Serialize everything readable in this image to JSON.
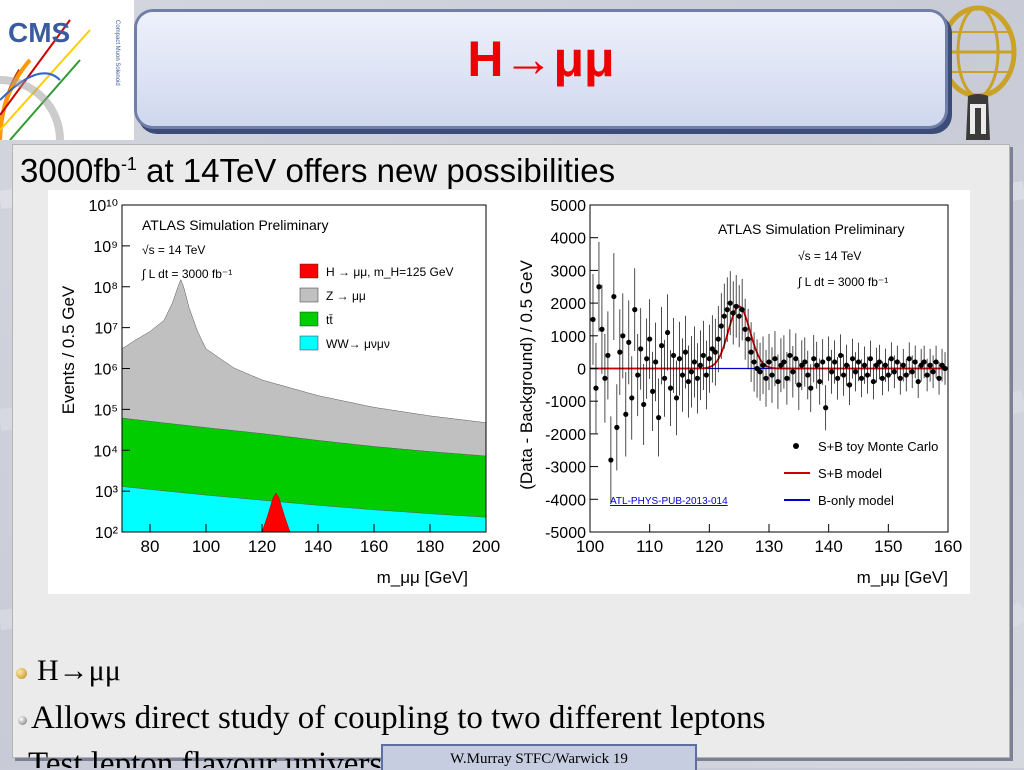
{
  "slide": {
    "title": "H→μμ",
    "headline_prefix": "3000fb",
    "headline_sup": "-1",
    "headline_suffix": " at 14TeV offers new possibilities",
    "bullets": [
      "H→μμ",
      "Allows direct study of coupling to two different leptons",
      "Test lepton flavour universality carefully"
    ],
    "footer": "W.Murray STFC/Warwick 19",
    "logo_left_text": "CMS",
    "logo_left_subtext": "Compact Muon Solenoid"
  },
  "chart_data": [
    {
      "type": "area",
      "header": "ATLAS Simulation Preliminary",
      "energy_label": "√s = 14 TeV",
      "lumi_label": "∫ L dt = 3000 fb⁻¹",
      "xlabel": "m_μμ [GeV]",
      "ylabel": "Events / 0.5 GeV",
      "xlim": [
        70,
        200
      ],
      "ylim": [
        100,
        10000000000
      ],
      "yscale": "log",
      "xticks": [
        "80",
        "100",
        "120",
        "140",
        "160",
        "180",
        "200"
      ],
      "yticks": [
        "10²",
        "10³",
        "10⁴",
        "10⁵",
        "10⁶",
        "10⁷",
        "10⁸",
        "10⁹",
        "10¹⁰"
      ],
      "legend": [
        {
          "label": "H → μμ, m_H=125 GeV",
          "color": "#ff0000"
        },
        {
          "label": "Z → μμ",
          "color": "#c0c0c0"
        },
        {
          "label": "tt̄",
          "color": "#00cc00"
        },
        {
          "label": "WW→ μνμν",
          "color": "#00ffff"
        }
      ],
      "series": [
        {
          "name": "WW→ μνμν",
          "color": "#00ffff",
          "x": [
            70,
            80,
            100,
            120,
            140,
            160,
            180,
            200
          ],
          "y": [
            1300,
            1100,
            800,
            600,
            450,
            350,
            280,
            230
          ]
        },
        {
          "name": "tt̄",
          "color": "#00cc00",
          "x": [
            70,
            80,
            100,
            120,
            140,
            160,
            180,
            200
          ],
          "y": [
            60000,
            50000,
            35000,
            25000,
            17000,
            12000,
            9000,
            7000
          ]
        },
        {
          "name": "Z → μμ",
          "color": "#c0c0c0",
          "x": [
            70,
            75,
            80,
            85,
            88,
            90,
            91,
            92,
            94,
            97,
            100,
            110,
            120,
            140,
            160,
            180,
            200
          ],
          "y": [
            3000000,
            5000000,
            8000000,
            15000000,
            40000000,
            100000000,
            150000000,
            100000000,
            30000000,
            8000000,
            3000000,
            1000000,
            500000,
            200000,
            100000,
            60000,
            40000
          ]
        },
        {
          "name": "H → μμ, m_H=125 GeV",
          "color": "#ff0000",
          "x": [
            120,
            122,
            124,
            125,
            126,
            128,
            130
          ],
          "y": [
            100,
            250,
            700,
            900,
            700,
            250,
            100
          ]
        }
      ]
    },
    {
      "type": "scatter",
      "header": "ATLAS Simulation Preliminary",
      "energy_label": "√s = 14 TeV",
      "lumi_label": "∫ L dt = 3000 fb⁻¹",
      "annotation": "ATL-PHYS-PUB-2013-014",
      "xlabel": "m_μμ [GeV]",
      "ylabel": "(Data - Background) / 0.5 GeV",
      "xlim": [
        100,
        160
      ],
      "ylim": [
        -5000,
        5000
      ],
      "xticks": [
        "100",
        "110",
        "120",
        "130",
        "140",
        "150",
        "160"
      ],
      "yticks": [
        "-5000",
        "-4000",
        "-3000",
        "-2000",
        "-1000",
        "0",
        "1000",
        "2000",
        "3000",
        "4000",
        "5000"
      ],
      "legend": [
        {
          "label": "S+B toy Monte Carlo",
          "color": "#000000"
        },
        {
          "label": "S+B model",
          "color": "#cc0000"
        },
        {
          "label": "B-only model",
          "color": "#0000cc"
        }
      ],
      "signal_model": {
        "mean": 125,
        "sigma": 1.8,
        "amplitude": 1900
      },
      "points": [
        [
          100.5,
          1500
        ],
        [
          101,
          -600
        ],
        [
          101.5,
          2500
        ],
        [
          102,
          1200
        ],
        [
          102.5,
          -300
        ],
        [
          103,
          400
        ],
        [
          103.5,
          -2800
        ],
        [
          104,
          2200
        ],
        [
          104.5,
          -1800
        ],
        [
          105,
          500
        ],
        [
          105.5,
          1000
        ],
        [
          106,
          -1400
        ],
        [
          106.5,
          800
        ],
        [
          107,
          -900
        ],
        [
          107.5,
          1800
        ],
        [
          108,
          -200
        ],
        [
          108.5,
          600
        ],
        [
          109,
          -1100
        ],
        [
          109.5,
          300
        ],
        [
          110,
          900
        ],
        [
          110.5,
          -700
        ],
        [
          111,
          200
        ],
        [
          111.5,
          -1500
        ],
        [
          112,
          700
        ],
        [
          112.5,
          -300
        ],
        [
          113,
          1100
        ],
        [
          113.5,
          -600
        ],
        [
          114,
          400
        ],
        [
          114.5,
          -900
        ],
        [
          115,
          300
        ],
        [
          115.5,
          -200
        ],
        [
          116,
          500
        ],
        [
          116.5,
          -400
        ],
        [
          117,
          -100
        ],
        [
          117.5,
          200
        ],
        [
          118,
          -300
        ],
        [
          118.5,
          100
        ],
        [
          119,
          400
        ],
        [
          119.5,
          -200
        ],
        [
          120,
          300
        ],
        [
          120.5,
          600
        ],
        [
          121,
          500
        ],
        [
          121.5,
          900
        ],
        [
          122,
          1300
        ],
        [
          122.5,
          1600
        ],
        [
          123,
          1800
        ],
        [
          123.5,
          2000
        ],
        [
          124,
          1700
        ],
        [
          124.5,
          1900
        ],
        [
          125,
          1600
        ],
        [
          125.5,
          1800
        ],
        [
          126,
          1200
        ],
        [
          126.5,
          900
        ],
        [
          127,
          500
        ],
        [
          127.5,
          200
        ],
        [
          128,
          0
        ],
        [
          128.5,
          -100
        ],
        [
          129,
          100
        ],
        [
          129.5,
          -300
        ],
        [
          130,
          200
        ],
        [
          130.5,
          -200
        ],
        [
          131,
          300
        ],
        [
          131.5,
          -400
        ],
        [
          132,
          100
        ],
        [
          132.5,
          200
        ],
        [
          133,
          -300
        ],
        [
          133.5,
          400
        ],
        [
          134,
          -100
        ],
        [
          134.5,
          300
        ],
        [
          135,
          -500
        ],
        [
          135.5,
          100
        ],
        [
          136,
          200
        ],
        [
          136.5,
          -200
        ],
        [
          137,
          -600
        ],
        [
          137.5,
          300
        ],
        [
          138,
          100
        ],
        [
          138.5,
          -400
        ],
        [
          139,
          200
        ],
        [
          139.5,
          -1200
        ],
        [
          140,
          300
        ],
        [
          140.5,
          -100
        ],
        [
          141,
          200
        ],
        [
          141.5,
          -300
        ],
        [
          142,
          400
        ],
        [
          142.5,
          -200
        ],
        [
          143,
          100
        ],
        [
          143.5,
          -500
        ],
        [
          144,
          300
        ],
        [
          144.5,
          -100
        ],
        [
          145,
          200
        ],
        [
          145.5,
          -300
        ],
        [
          146,
          100
        ],
        [
          146.5,
          -200
        ],
        [
          147,
          300
        ],
        [
          147.5,
          -400
        ],
        [
          148,
          100
        ],
        [
          148.5,
          200
        ],
        [
          149,
          -300
        ],
        [
          149.5,
          100
        ],
        [
          150,
          -200
        ],
        [
          150.5,
          300
        ],
        [
          151,
          -100
        ],
        [
          151.5,
          200
        ],
        [
          152,
          -300
        ],
        [
          152.5,
          100
        ],
        [
          153,
          -200
        ],
        [
          153.5,
          300
        ],
        [
          154,
          -100
        ],
        [
          154.5,
          200
        ],
        [
          155,
          -400
        ],
        [
          155.5,
          100
        ],
        [
          156,
          200
        ],
        [
          156.5,
          -200
        ],
        [
          157,
          100
        ],
        [
          157.5,
          -100
        ],
        [
          158,
          200
        ],
        [
          158.5,
          -300
        ],
        [
          159,
          100
        ],
        [
          159.5,
          0
        ]
      ]
    }
  ],
  "colors": {
    "title": "#ee0000",
    "title_bar": "#dfe5f5",
    "panel": "#ebebeb",
    "footer_box": "#c6cde0"
  }
}
